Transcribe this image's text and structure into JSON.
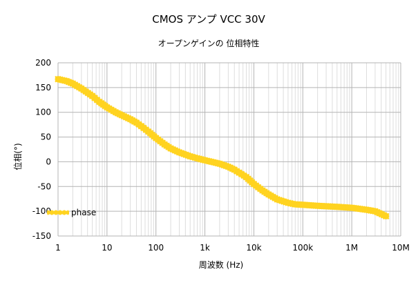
{
  "chart_data": {
    "type": "line",
    "title": "CMOS アンプ  VCC 30V",
    "subtitle": "オープンゲインの 位相特性",
    "xlabel": "周波数 (Hz)",
    "ylabel": "位相(°)",
    "xscale": "log",
    "xlim": [
      1,
      10000000
    ],
    "ylim": [
      -150,
      200
    ],
    "grid": true,
    "legend_position": "left",
    "x_ticks": [
      "1",
      "10",
      "100",
      "1k",
      "10k",
      "100k",
      "1M",
      "10M"
    ],
    "y_ticks": [
      "200",
      "150",
      "100",
      "50",
      "0",
      "-50",
      "-100",
      "-150"
    ],
    "series": [
      {
        "name": "phase",
        "color": "#FFD320",
        "x": [
          1,
          1.5,
          2,
          3,
          5,
          7,
          10,
          15,
          20,
          30,
          40,
          50,
          70,
          100,
          150,
          200,
          300,
          500,
          700,
          1000,
          1500,
          2000,
          3000,
          4000,
          5000,
          7000,
          10000,
          15000,
          20000,
          30000,
          50000,
          70000,
          100000,
          200000,
          500000,
          1000000,
          2000000,
          3000000,
          5000000
        ],
        "y": [
          167,
          163,
          158,
          148,
          133,
          121,
          110,
          100,
          94,
          86,
          79,
          72,
          61,
          48,
          35,
          27,
          19,
          11,
          7,
          3,
          -1,
          -4,
          -10,
          -16,
          -22,
          -31,
          -45,
          -58,
          -66,
          -76,
          -83,
          -86,
          -87,
          -89,
          -91,
          -93,
          -97,
          -100,
          -110
        ]
      }
    ]
  }
}
